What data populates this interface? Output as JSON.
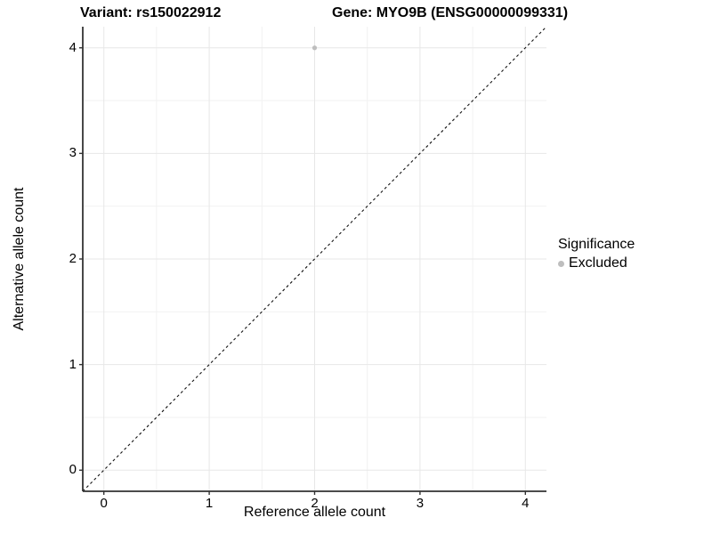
{
  "header": {
    "variant_title": "Variant: rs150022912",
    "gene_title": "Gene: MYO9B (ENSG00000099331)"
  },
  "chart_data": {
    "type": "scatter",
    "title_left": "Variant: rs150022912",
    "title_right": "Gene: MYO9B (ENSG00000099331)",
    "xlabel": "Reference allele count",
    "ylabel": "Alternative allele count",
    "xlim": [
      -0.2,
      4.2
    ],
    "ylim": [
      -0.2,
      4.2
    ],
    "x_major_ticks": [
      0,
      1,
      2,
      3,
      4
    ],
    "y_major_ticks": [
      0,
      1,
      2,
      3,
      4
    ],
    "x_minor_ticks": [
      0.5,
      1.5,
      2.5,
      3.5
    ],
    "y_minor_ticks": [
      0.5,
      1.5,
      2.5,
      3.5
    ],
    "grid": "major+minor",
    "points": [
      {
        "x": 2,
        "y": 4,
        "series": "Excluded"
      }
    ],
    "reference_line": {
      "style": "dashed",
      "from": [
        -0.2,
        -0.2
      ],
      "to": [
        4.2,
        4.2
      ]
    },
    "legend": {
      "title": "Significance",
      "position": "right",
      "items": [
        {
          "label": "Excluded",
          "color": "#BEBEBE"
        }
      ]
    }
  },
  "colors": {
    "point": "#BEBEBE",
    "grid_major": "#E7E7E7",
    "grid_minor": "#F2F2F2",
    "axis_line": "#333333",
    "dashed_line": "#111111",
    "text": "#000000",
    "background": "#FFFFFF"
  }
}
